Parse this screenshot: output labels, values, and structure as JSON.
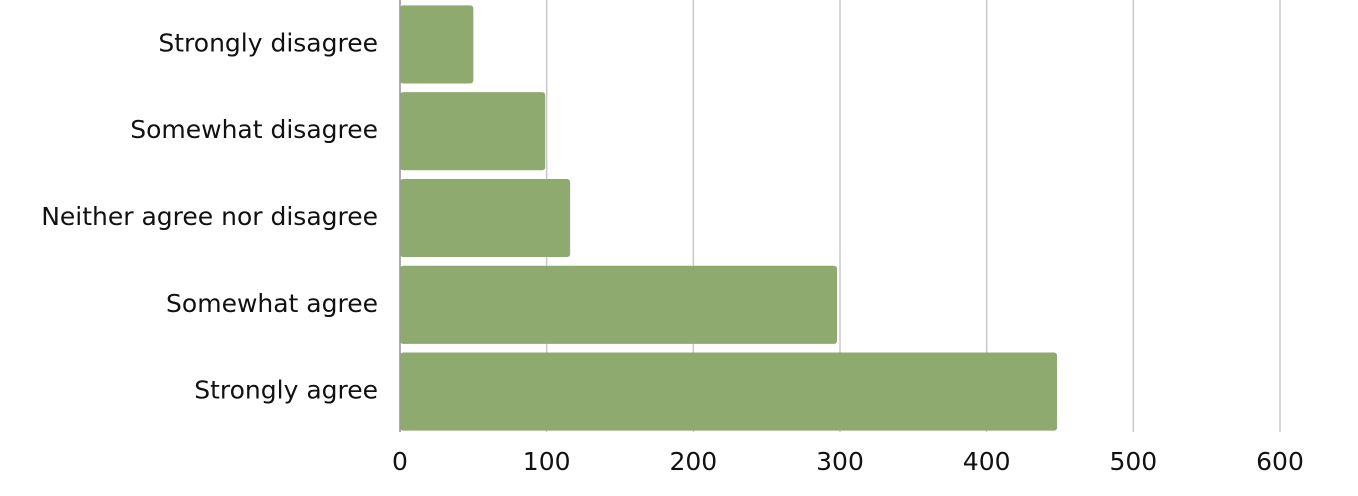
{
  "chart_data": {
    "type": "bar",
    "orientation": "horizontal",
    "categories": [
      "Strongly disagree",
      "Somewhat disagree",
      "Neither agree nor disagree",
      "Somewhat agree",
      "Strongly agree"
    ],
    "values": [
      50,
      99,
      116,
      298,
      448
    ],
    "color": "#8faa6e",
    "xlim": [
      0,
      600
    ],
    "xticks": [
      0,
      100,
      200,
      300,
      400,
      500,
      600
    ],
    "grid": true
  }
}
